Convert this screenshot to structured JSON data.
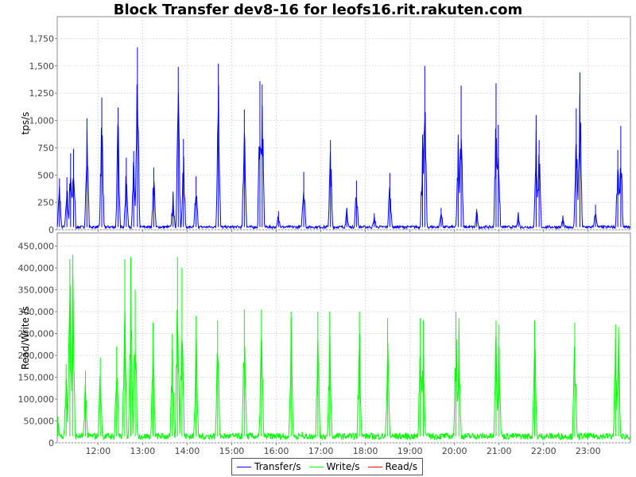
{
  "chart_data": [
    {
      "type": "line",
      "title": "Block Transfer dev8-16 for leofs16.rit.rakuten.com",
      "ylabel": "tps/s",
      "xlabel": "",
      "ylim": [
        0,
        1950
      ],
      "yticks": [
        0,
        250,
        500,
        750,
        1000,
        1250,
        1500,
        1750
      ],
      "ytick_labels": [
        "0",
        "250",
        "500",
        "750",
        "1,000",
        "1,250",
        "1,500",
        "1,750"
      ],
      "xlim": [
        "11:05",
        "23:57"
      ],
      "xticks": [
        "12:00",
        "13:00",
        "14:00",
        "15:00",
        "16:00",
        "17:00",
        "18:00",
        "19:00",
        "20:00",
        "21:00",
        "22:00",
        "23:00"
      ],
      "grid": true,
      "series": [
        {
          "name": "Transfer/s",
          "color": "#0000ff",
          "baseline": 25,
          "points": [
            [
              "11:08",
              470
            ],
            [
              "11:18",
              480
            ],
            [
              "11:23",
              700
            ],
            [
              "11:27",
              740
            ],
            [
              "11:45",
              1020
            ],
            [
              "12:05",
              1210
            ],
            [
              "12:27",
              1120
            ],
            [
              "12:38",
              660
            ],
            [
              "12:48",
              720
            ],
            [
              "12:53",
              1670
            ],
            [
              "13:15",
              570
            ],
            [
              "13:41",
              350
            ],
            [
              "13:48",
              1490
            ],
            [
              "13:55",
              830
            ],
            [
              "14:12",
              490
            ],
            [
              "14:42",
              1520
            ],
            [
              "15:17",
              1100
            ],
            [
              "15:38",
              1360
            ],
            [
              "15:41",
              1330
            ],
            [
              "16:03",
              170
            ],
            [
              "16:37",
              530
            ],
            [
              "17:13",
              820
            ],
            [
              "17:35",
              200
            ],
            [
              "17:48",
              450
            ],
            [
              "18:12",
              150
            ],
            [
              "18:33",
              520
            ],
            [
              "19:17",
              870
            ],
            [
              "19:20",
              1500
            ],
            [
              "19:42",
              200
            ],
            [
              "20:05",
              870
            ],
            [
              "20:09",
              1320
            ],
            [
              "20:30",
              190
            ],
            [
              "20:56",
              1340
            ],
            [
              "20:59",
              960
            ],
            [
              "21:26",
              160
            ],
            [
              "21:50",
              1050
            ],
            [
              "21:54",
              820
            ],
            [
              "22:26",
              130
            ],
            [
              "22:44",
              1110
            ],
            [
              "22:49",
              1440
            ],
            [
              "23:10",
              230
            ],
            [
              "23:40",
              730
            ],
            [
              "23:44",
              950
            ]
          ]
        }
      ]
    },
    {
      "type": "line",
      "title": "",
      "ylabel": "Read/Write /s",
      "xlabel": "",
      "ylim": [
        0,
        480000
      ],
      "yticks": [
        0,
        50000,
        100000,
        150000,
        200000,
        250000,
        300000,
        350000,
        400000,
        450000
      ],
      "ytick_labels": [
        "0",
        "50,000",
        "100,000",
        "150,000",
        "200,000",
        "250,000",
        "300,000",
        "350,000",
        "400,000",
        "450,000"
      ],
      "xlim": [
        "11:05",
        "23:57"
      ],
      "xticks": [
        "12:00",
        "13:00",
        "14:00",
        "15:00",
        "16:00",
        "17:00",
        "18:00",
        "19:00",
        "20:00",
        "21:00",
        "22:00",
        "23:00"
      ],
      "grid": true,
      "series": [
        {
          "name": "Write/s",
          "color": "#00ff00",
          "baseline": 15000,
          "points": [
            [
              "11:06",
              60000
            ],
            [
              "11:17",
              180000
            ],
            [
              "11:22",
              420000
            ],
            [
              "11:26",
              430000
            ],
            [
              "11:43",
              165000
            ],
            [
              "12:03",
              195000
            ],
            [
              "12:25",
              220000
            ],
            [
              "12:36",
              420000
            ],
            [
              "12:44",
              425000
            ],
            [
              "12:50",
              350000
            ],
            [
              "13:14",
              275000
            ],
            [
              "13:40",
              250000
            ],
            [
              "13:47",
              425000
            ],
            [
              "13:53",
              400000
            ],
            [
              "14:12",
              290000
            ],
            [
              "14:41",
              280000
            ],
            [
              "15:17",
              305000
            ],
            [
              "15:40",
              305000
            ],
            [
              "16:20",
              300000
            ],
            [
              "16:35",
              25000
            ],
            [
              "16:56",
              300000
            ],
            [
              "17:12",
              300000
            ],
            [
              "17:40",
              15000
            ],
            [
              "17:52",
              300000
            ],
            [
              "18:30",
              285000
            ],
            [
              "19:14",
              285000
            ],
            [
              "19:18",
              280000
            ],
            [
              "20:02",
              300000
            ],
            [
              "20:06",
              285000
            ],
            [
              "20:56",
              280000
            ],
            [
              "21:00",
              270000
            ],
            [
              "21:48",
              280000
            ],
            [
              "22:42",
              275000
            ],
            [
              "23:37",
              270000
            ],
            [
              "23:41",
              265000
            ]
          ]
        },
        {
          "name": "Read/s",
          "color": "#ff0000",
          "baseline": 0,
          "points": []
        }
      ]
    }
  ],
  "legend": {
    "placement": "bottom-center",
    "items": [
      {
        "label": "Transfer/s",
        "color": "#0000ff"
      },
      {
        "label": "Write/s",
        "color": "#00ff00"
      },
      {
        "label": "Read/s",
        "color": "#ff0000"
      }
    ]
  }
}
